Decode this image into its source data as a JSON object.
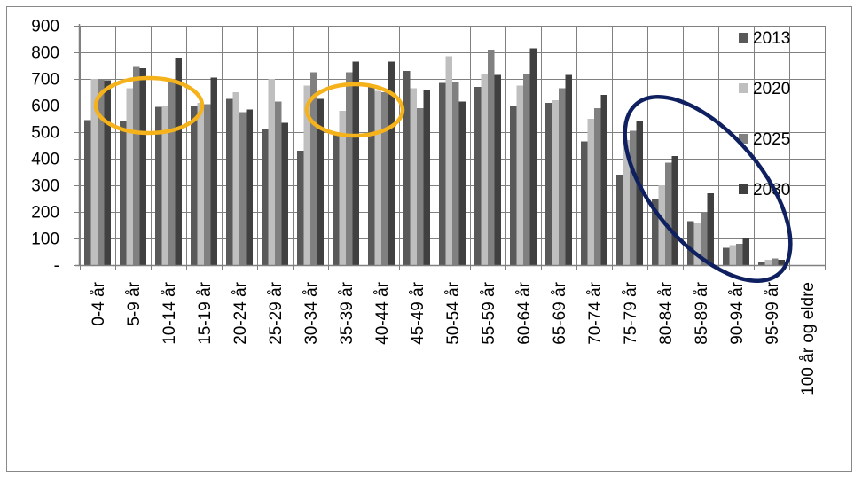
{
  "chart_data": {
    "type": "bar",
    "title": "",
    "xlabel": "",
    "ylabel": "",
    "ylim": [
      0,
      900
    ],
    "yticks": [
      {
        "value": 0,
        "label": "-"
      },
      {
        "value": 100,
        "label": "100"
      },
      {
        "value": 200,
        "label": "200"
      },
      {
        "value": 300,
        "label": "300"
      },
      {
        "value": 400,
        "label": "400"
      },
      {
        "value": 500,
        "label": "500"
      },
      {
        "value": 600,
        "label": "600"
      },
      {
        "value": 700,
        "label": "700"
      },
      {
        "value": 800,
        "label": "800"
      },
      {
        "value": 900,
        "label": "900"
      }
    ],
    "grid": true,
    "legend_position": "right",
    "categories": [
      "0-4 år",
      "5-9 år",
      "10-14 år",
      "15-19 år",
      "20-24 år",
      "25-29 år",
      "30-34 år",
      "35-39 år",
      "40-44 år",
      "45-49 år",
      "50-54 år",
      "55-59 år",
      "60-64 år",
      "65-69 år",
      "70-74 år",
      "75-79 år",
      "80-84 år",
      "85-89 år",
      "90-94 år",
      "95-99 år",
      "100 år og eldre"
    ],
    "series": [
      {
        "name": "2013",
        "color": "#595959",
        "values": [
          545,
          540,
          595,
          600,
          625,
          510,
          430,
          490,
          675,
          730,
          685,
          670,
          600,
          610,
          465,
          340,
          250,
          165,
          65,
          12,
          0
        ]
      },
      {
        "name": "2020",
        "color": "#bfbfbf",
        "values": [
          700,
          665,
          600,
          610,
          650,
          700,
          675,
          580,
          655,
          665,
          785,
          720,
          675,
          620,
          550,
          470,
          300,
          160,
          75,
          20,
          0
        ]
      },
      {
        "name": "2025",
        "color": "#808080",
        "values": [
          700,
          745,
          690,
          605,
          575,
          615,
          725,
          725,
          650,
          590,
          690,
          810,
          720,
          665,
          590,
          505,
          385,
          200,
          80,
          25,
          0
        ]
      },
      {
        "name": "2030",
        "color": "#404040",
        "values": [
          695,
          740,
          780,
          705,
          585,
          535,
          625,
          765,
          765,
          660,
          615,
          715,
          815,
          715,
          640,
          540,
          410,
          270,
          100,
          20,
          0
        ]
      }
    ]
  },
  "annotations": [
    {
      "name": "highlight-ellipse-5-9",
      "color": "#f5b21a"
    },
    {
      "name": "highlight-ellipse-35-39",
      "color": "#f5b21a"
    },
    {
      "name": "highlight-ellipse-elderly",
      "color": "#0f2060"
    }
  ],
  "colors": {
    "axis": "#808080",
    "grid": "#808080",
    "frame": "#888888"
  }
}
